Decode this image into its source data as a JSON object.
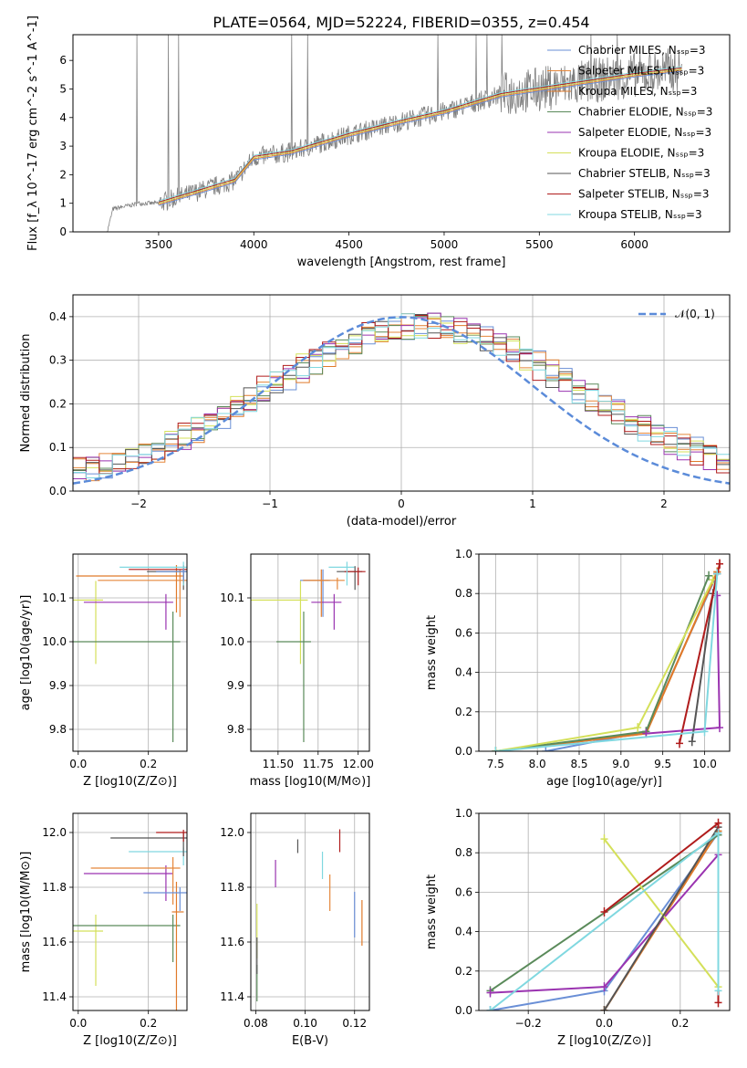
{
  "title": "PLATE=0564, MJD=52224, FIBERID=0355, z=0.454",
  "legend_labels": [
    "Chabrier MILES, N_SSP=3",
    "Salpeter MILES, N_SSP=3",
    "Kroupa MILES, N_SSP=3",
    "Chabrier ELODIE, N_SSP=3",
    "Salpeter ELODIE, N_SSP=3",
    "Kroupa ELODIE, N_SSP=3",
    "Chabrier STELIB, N_SSP=3",
    "Salpeter STELIB, N_SSP=3",
    "Kroupa STELIB, N_SSP=3"
  ],
  "colors": [
    "#6a8fd6",
    "#e5873b",
    "#e07a2a",
    "#5a8a5a",
    "#9a33b0",
    "#d4e05a",
    "#555555",
    "#b01c1c",
    "#80d8e0"
  ],
  "chart_data": [
    {
      "id": "spectrum",
      "type": "line",
      "xlabel": "wavelength [Angstrom, rest frame]",
      "ylabel": "Flux [f_λ 10^-17 erg cm^-2 s^-1 A^-1]",
      "xlim": [
        3050,
        6500
      ],
      "ylim": [
        0,
        6.9
      ],
      "xticks": [
        3500,
        4000,
        4500,
        5000,
        5500,
        6000
      ],
      "yticks": [
        0,
        1,
        2,
        3,
        4,
        5,
        6
      ],
      "continuum": [
        [
          3230,
          0
        ],
        [
          3260,
          0.8
        ],
        [
          3400,
          1.0
        ],
        [
          3500,
          1.0
        ],
        [
          3700,
          1.4
        ],
        [
          3900,
          1.8
        ],
        [
          4000,
          2.6
        ],
        [
          4200,
          2.8
        ],
        [
          4500,
          3.4
        ],
        [
          4800,
          3.9
        ],
        [
          5000,
          4.2
        ],
        [
          5300,
          4.8
        ],
        [
          5600,
          5.1
        ],
        [
          6000,
          5.5
        ],
        [
          6250,
          5.7
        ]
      ],
      "grid": false
    },
    {
      "id": "residuals",
      "type": "line",
      "xlabel": "(data-model)/error",
      "ylabel": "Normed distribution",
      "xlim": [
        -2.5,
        2.5
      ],
      "ylim": [
        0,
        0.45
      ],
      "xticks": [
        -2,
        -1,
        0,
        1,
        2
      ],
      "yticks": [
        0.0,
        0.1,
        0.2,
        0.3,
        0.4
      ],
      "legend": "N(0,1)",
      "legend_position": "top-right",
      "grid": true
    },
    {
      "id": "ageZ",
      "type": "scatter",
      "xlabel": "Z [log10(Z/Z⊙)]",
      "ylabel": "age [log10(age/yr)]",
      "xlim": [
        -0.015,
        0.31
      ],
      "ylim": [
        9.75,
        10.2
      ],
      "xticks": [
        0.0,
        0.2
      ],
      "yticks": [
        9.8,
        9.9,
        10.0,
        10.1
      ],
      "points": [
        {
          "x": 0.05,
          "y": 10.095,
          "c": 5
        },
        {
          "x": 0.29,
          "y": 10.14,
          "c": 1
        },
        {
          "x": 0.27,
          "y": 10.0,
          "c": 3
        },
        {
          "x": 0.25,
          "y": 10.09,
          "c": 4
        },
        {
          "x": 0.28,
          "y": 10.15,
          "c": 2
        },
        {
          "x": 0.3,
          "y": 10.16,
          "c": 6
        },
        {
          "x": 0.3,
          "y": 10.165,
          "c": 7
        },
        {
          "x": 0.3,
          "y": 10.17,
          "c": 8
        },
        {
          "x": 0.3,
          "y": 10.16,
          "c": 0
        }
      ],
      "grid": true
    },
    {
      "id": "ageMass",
      "type": "scatter",
      "xlabel": "mass [log10(M/M⊙)]",
      "ylabel": "",
      "xlim": [
        11.33,
        12.07
      ],
      "ylim": [
        9.75,
        10.2
      ],
      "xticks": [
        11.5,
        11.75,
        12.0
      ],
      "yticks": [
        9.8,
        9.9,
        10.0,
        10.1
      ],
      "points": [
        {
          "x": 11.64,
          "y": 10.095,
          "c": 5
        },
        {
          "x": 11.78,
          "y": 10.14,
          "c": 0
        },
        {
          "x": 11.66,
          "y": 10.0,
          "c": 3
        },
        {
          "x": 11.85,
          "y": 10.09,
          "c": 4
        },
        {
          "x": 11.77,
          "y": 10.14,
          "c": 2
        },
        {
          "x": 11.98,
          "y": 10.16,
          "c": 6
        },
        {
          "x": 12.0,
          "y": 10.16,
          "c": 7
        },
        {
          "x": 11.93,
          "y": 10.17,
          "c": 8
        },
        {
          "x": 11.87,
          "y": 10.14,
          "c": 1
        }
      ],
      "grid": true
    },
    {
      "id": "weightAge",
      "type": "line",
      "xlabel": "age [log10(age/yr)]",
      "ylabel": "mass weight",
      "xlim": [
        7.3,
        10.3
      ],
      "ylim": [
        0,
        1.0
      ],
      "xticks": [
        7.5,
        8.0,
        8.5,
        9.0,
        9.5,
        10.0
      ],
      "yticks": [
        0.0,
        0.2,
        0.4,
        0.6,
        0.8,
        1.0
      ],
      "series": [
        {
          "c": 0,
          "x": [
            8.1,
            9.3,
            10.15
          ],
          "y": [
            0.0,
            0.1,
            0.9
          ]
        },
        {
          "c": 1,
          "x": [
            7.5,
            9.3,
            10.15
          ],
          "y": [
            0.0,
            0.09,
            0.91
          ]
        },
        {
          "c": 2,
          "x": [
            7.5,
            9.3,
            10.15
          ],
          "y": [
            0.0,
            0.09,
            0.91
          ]
        },
        {
          "c": 3,
          "x": [
            7.5,
            9.3,
            10.05
          ],
          "y": [
            0.0,
            0.1,
            0.89
          ]
        },
        {
          "c": 4,
          "x": [
            9.3,
            10.18,
            10.15
          ],
          "y": [
            0.09,
            0.12,
            0.79
          ]
        },
        {
          "c": 5,
          "x": [
            7.5,
            9.2,
            10.1
          ],
          "y": [
            0.0,
            0.12,
            0.87
          ]
        },
        {
          "c": 6,
          "x": [
            9.85,
            10.1,
            10.15
          ],
          "y": [
            0.05,
            0.8,
            0.9
          ]
        },
        {
          "c": 7,
          "x": [
            9.7,
            10.18,
            10.18
          ],
          "y": [
            0.04,
            0.95,
            0.95
          ]
        },
        {
          "c": 8,
          "x": [
            7.5,
            10.0,
            10.15
          ],
          "y": [
            0.0,
            0.1,
            0.9
          ]
        }
      ],
      "grid": true
    },
    {
      "id": "massZ",
      "type": "scatter",
      "xlabel": "Z [log10(Z/Z⊙)]",
      "ylabel": "mass [log10(M/M⊙)]",
      "xlim": [
        -0.015,
        0.31
      ],
      "ylim": [
        11.35,
        12.07
      ],
      "xticks": [
        0.0,
        0.2
      ],
      "yticks": [
        11.4,
        11.6,
        11.8,
        12.0
      ],
      "points": [
        {
          "x": 0.05,
          "y": 11.64,
          "c": 5
        },
        {
          "x": 0.27,
          "y": 11.66,
          "c": 3
        },
        {
          "x": 0.28,
          "y": 11.71,
          "c": 2
        },
        {
          "x": 0.25,
          "y": 11.85,
          "c": 4
        },
        {
          "x": 0.27,
          "y": 11.87,
          "c": 1
        },
        {
          "x": 0.29,
          "y": 11.78,
          "c": 0
        },
        {
          "x": 0.3,
          "y": 11.93,
          "c": 8
        },
        {
          "x": 0.3,
          "y": 11.98,
          "c": 6
        },
        {
          "x": 0.3,
          "y": 12.0,
          "c": 7
        }
      ],
      "grid": true
    },
    {
      "id": "massEBV",
      "type": "scatter",
      "xlabel": "E(B-V)",
      "ylabel": "",
      "xlim": [
        0.078,
        0.126
      ],
      "ylim": [
        11.35,
        12.07
      ],
      "xticks": [
        0.08,
        0.1,
        0.12
      ],
      "yticks": [
        11.4,
        11.6,
        11.8,
        12.0
      ],
      "points": [
        {
          "x": 0.0805,
          "y": 11.64,
          "c": 5
        },
        {
          "x": 0.0805,
          "y": 11.45,
          "c": 3
        },
        {
          "x": 0.0805,
          "y": 11.55,
          "c": 6
        },
        {
          "x": 0.088,
          "y": 11.85,
          "c": 4
        },
        {
          "x": 0.097,
          "y": 11.95,
          "c": 6
        },
        {
          "x": 0.107,
          "y": 11.88,
          "c": 8
        },
        {
          "x": 0.11,
          "y": 11.78,
          "c": 1
        },
        {
          "x": 0.114,
          "y": 11.97,
          "c": 7
        },
        {
          "x": 0.12,
          "y": 11.7,
          "c": 0
        },
        {
          "x": 0.123,
          "y": 11.67,
          "c": 2
        }
      ],
      "grid": true
    },
    {
      "id": "weightZ",
      "type": "line",
      "xlabel": "Z [log10(Z/Z⊙)]",
      "ylabel": "mass weight",
      "xlim": [
        -0.33,
        0.33
      ],
      "ylim": [
        0,
        1.0
      ],
      "xticks": [
        -0.2,
        0.0,
        0.2
      ],
      "yticks": [
        0.0,
        0.2,
        0.4,
        0.6,
        0.8,
        1.0
      ],
      "series": [
        {
          "c": 0,
          "x": [
            -0.3,
            0.0,
            0.3
          ],
          "y": [
            0.0,
            0.1,
            0.9
          ]
        },
        {
          "c": 1,
          "x": [
            0.0,
            0.3
          ],
          "y": [
            0.0,
            0.91
          ]
        },
        {
          "c": 2,
          "x": [
            0.0,
            0.3
          ],
          "y": [
            0.0,
            0.91
          ]
        },
        {
          "c": 3,
          "x": [
            -0.3,
            0.3
          ],
          "y": [
            0.1,
            0.89
          ]
        },
        {
          "c": 4,
          "x": [
            -0.3,
            0.0,
            0.3
          ],
          "y": [
            0.09,
            0.12,
            0.79
          ]
        },
        {
          "c": 5,
          "x": [
            0.0,
            0.3
          ],
          "y": [
            0.87,
            0.12
          ]
        },
        {
          "c": 6,
          "x": [
            0.0,
            0.3
          ],
          "y": [
            0.0,
            0.93
          ]
        },
        {
          "c": 7,
          "x": [
            0.0,
            0.3,
            0.3
          ],
          "y": [
            0.5,
            0.95,
            0.04
          ]
        },
        {
          "c": 8,
          "x": [
            -0.3,
            0.3,
            0.3
          ],
          "y": [
            0.0,
            0.9,
            0.1
          ]
        }
      ],
      "grid": true
    }
  ]
}
